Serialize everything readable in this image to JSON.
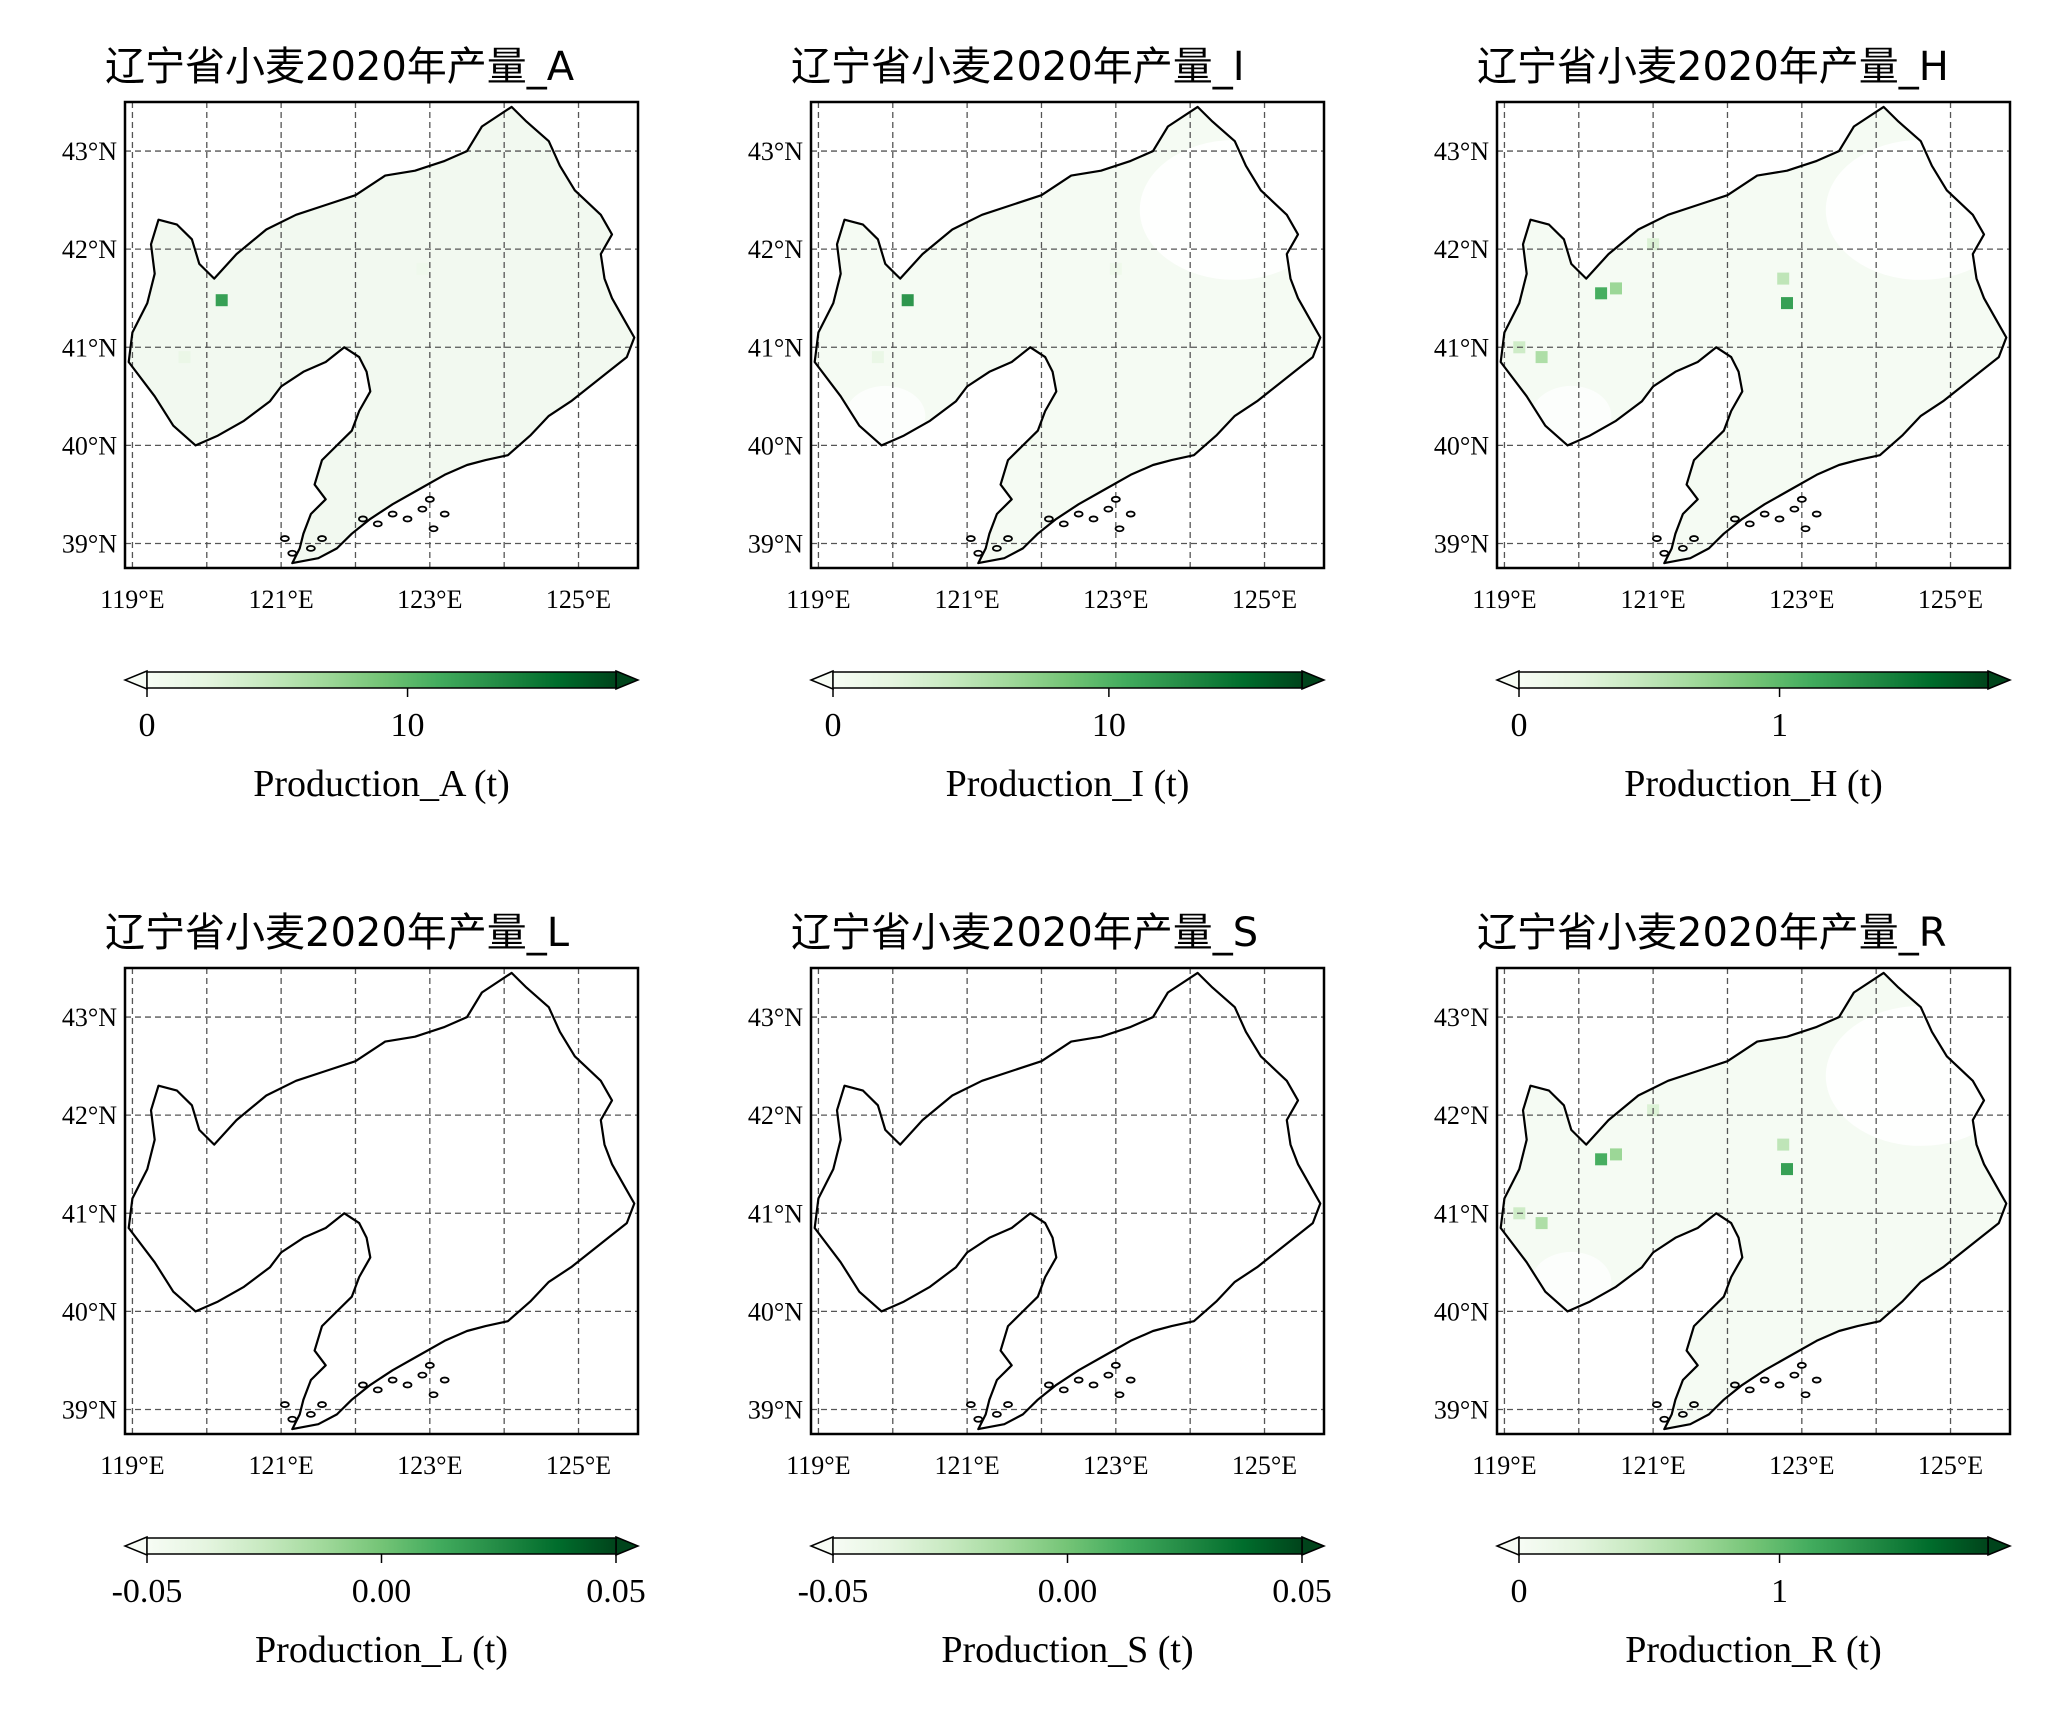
{
  "figure": {
    "background": "#ffffff",
    "colormap": [
      "#f7fcf5",
      "#e5f5e0",
      "#c7e9c0",
      "#a1d99b",
      "#74c476",
      "#41ab5d",
      "#238b45",
      "#006d2c",
      "#00441b"
    ],
    "grid": "dashed",
    "extent": {
      "lon": [
        118.9,
        125.8
      ],
      "lat": [
        38.75,
        43.5
      ]
    }
  },
  "chart_data": [
    {
      "type": "heatmap",
      "title": "辽宁省小麦2020年产量_A",
      "xticks": [
        "119°E",
        "121°E",
        "123°E",
        "125°E"
      ],
      "yticks": [
        "43°N",
        "42°N",
        "41°N",
        "40°N",
        "39°N"
      ],
      "xtick_values": [
        119,
        121,
        123,
        125
      ],
      "ytick_values": [
        43,
        42,
        41,
        40,
        39
      ],
      "colorbar": {
        "label": "Production_A (t)",
        "ticks": [
          "0",
          "10"
        ],
        "tick_values": [
          0,
          10
        ],
        "range": [
          0,
          18
        ],
        "extend": "both"
      },
      "fill": "faint",
      "hotspots": [
        {
          "lon": 120.2,
          "lat": 41.48,
          "value": 12
        },
        {
          "lon": 119.7,
          "lat": 40.9,
          "value": 1.5
        },
        {
          "lon": 122.9,
          "lat": 41.8,
          "value": 1
        }
      ]
    },
    {
      "type": "heatmap",
      "title": "辽宁省小麦2020年产量_I",
      "xticks": [
        "119°E",
        "121°E",
        "123°E",
        "125°E"
      ],
      "yticks": [
        "43°N",
        "42°N",
        "41°N",
        "40°N",
        "39°N"
      ],
      "xtick_values": [
        119,
        121,
        123,
        125
      ],
      "ytick_values": [
        43,
        42,
        41,
        40,
        39
      ],
      "colorbar": {
        "label": "Production_I (t)",
        "ticks": [
          "0",
          "10"
        ],
        "tick_values": [
          0,
          10
        ],
        "range": [
          0,
          17
        ],
        "extend": "both"
      },
      "fill": "partial",
      "hotspots": [
        {
          "lon": 120.2,
          "lat": 41.48,
          "value": 12
        },
        {
          "lon": 119.8,
          "lat": 40.9,
          "value": 1.5
        },
        {
          "lon": 123.0,
          "lat": 41.8,
          "value": 1
        },
        {
          "lon": 121.8,
          "lat": 40.1,
          "value": 1
        }
      ]
    },
    {
      "type": "heatmap",
      "title": "辽宁省小麦2020年产量_H",
      "xticks": [
        "119°E",
        "121°E",
        "123°E",
        "125°E"
      ],
      "yticks": [
        "43°N",
        "42°N",
        "41°N",
        "40°N",
        "39°N"
      ],
      "xtick_values": [
        119,
        121,
        123,
        125
      ],
      "ytick_values": [
        43,
        42,
        41,
        40,
        39
      ],
      "colorbar": {
        "label": "Production_H (t)",
        "ticks": [
          "0",
          "1"
        ],
        "tick_values": [
          0,
          1
        ],
        "range": [
          0,
          1.8
        ],
        "extend": "both"
      },
      "fill": "partial",
      "hotspots": [
        {
          "lon": 120.3,
          "lat": 41.55,
          "value": 1.1
        },
        {
          "lon": 120.5,
          "lat": 41.6,
          "value": 0.7
        },
        {
          "lon": 122.8,
          "lat": 41.45,
          "value": 1.2
        },
        {
          "lon": 122.75,
          "lat": 41.7,
          "value": 0.5
        },
        {
          "lon": 119.5,
          "lat": 40.9,
          "value": 0.6
        },
        {
          "lon": 119.2,
          "lat": 41.0,
          "value": 0.4
        },
        {
          "lon": 121.0,
          "lat": 42.05,
          "value": 0.3
        }
      ]
    },
    {
      "type": "heatmap",
      "title": "辽宁省小麦2020年产量_L",
      "xticks": [
        "119°E",
        "121°E",
        "123°E",
        "125°E"
      ],
      "yticks": [
        "43°N",
        "42°N",
        "41°N",
        "40°N",
        "39°N"
      ],
      "xtick_values": [
        119,
        121,
        123,
        125
      ],
      "ytick_values": [
        43,
        42,
        41,
        40,
        39
      ],
      "colorbar": {
        "label": "Production_L (t)",
        "ticks": [
          "-0.05",
          "0.00",
          "0.05"
        ],
        "tick_values": [
          -0.05,
          0.0,
          0.05
        ],
        "range": [
          -0.05,
          0.05
        ],
        "extend": "both"
      },
      "fill": "none",
      "hotspots": []
    },
    {
      "type": "heatmap",
      "title": "辽宁省小麦2020年产量_S",
      "xticks": [
        "119°E",
        "121°E",
        "123°E",
        "125°E"
      ],
      "yticks": [
        "43°N",
        "42°N",
        "41°N",
        "40°N",
        "39°N"
      ],
      "xtick_values": [
        119,
        121,
        123,
        125
      ],
      "ytick_values": [
        43,
        42,
        41,
        40,
        39
      ],
      "colorbar": {
        "label": "Production_S (t)",
        "ticks": [
          "-0.05",
          "0.00",
          "0.05"
        ],
        "tick_values": [
          -0.05,
          0.0,
          0.05
        ],
        "range": [
          -0.05,
          0.05
        ],
        "extend": "both"
      },
      "fill": "none",
      "hotspots": []
    },
    {
      "type": "heatmap",
      "title": "辽宁省小麦2020年产量_R",
      "xticks": [
        "119°E",
        "121°E",
        "123°E",
        "125°E"
      ],
      "yticks": [
        "43°N",
        "42°N",
        "41°N",
        "40°N",
        "39°N"
      ],
      "xtick_values": [
        119,
        121,
        123,
        125
      ],
      "ytick_values": [
        43,
        42,
        41,
        40,
        39
      ],
      "colorbar": {
        "label": "Production_R (t)",
        "ticks": [
          "0",
          "1"
        ],
        "tick_values": [
          0,
          1
        ],
        "range": [
          0,
          1.8
        ],
        "extend": "both"
      },
      "fill": "partial",
      "hotspots": [
        {
          "lon": 120.3,
          "lat": 41.55,
          "value": 1.1
        },
        {
          "lon": 120.5,
          "lat": 41.6,
          "value": 0.7
        },
        {
          "lon": 122.8,
          "lat": 41.45,
          "value": 1.2
        },
        {
          "lon": 122.75,
          "lat": 41.7,
          "value": 0.5
        },
        {
          "lon": 119.5,
          "lat": 40.9,
          "value": 0.6
        },
        {
          "lon": 119.2,
          "lat": 41.0,
          "value": 0.4
        },
        {
          "lon": 121.0,
          "lat": 42.05,
          "value": 0.3
        }
      ]
    }
  ]
}
